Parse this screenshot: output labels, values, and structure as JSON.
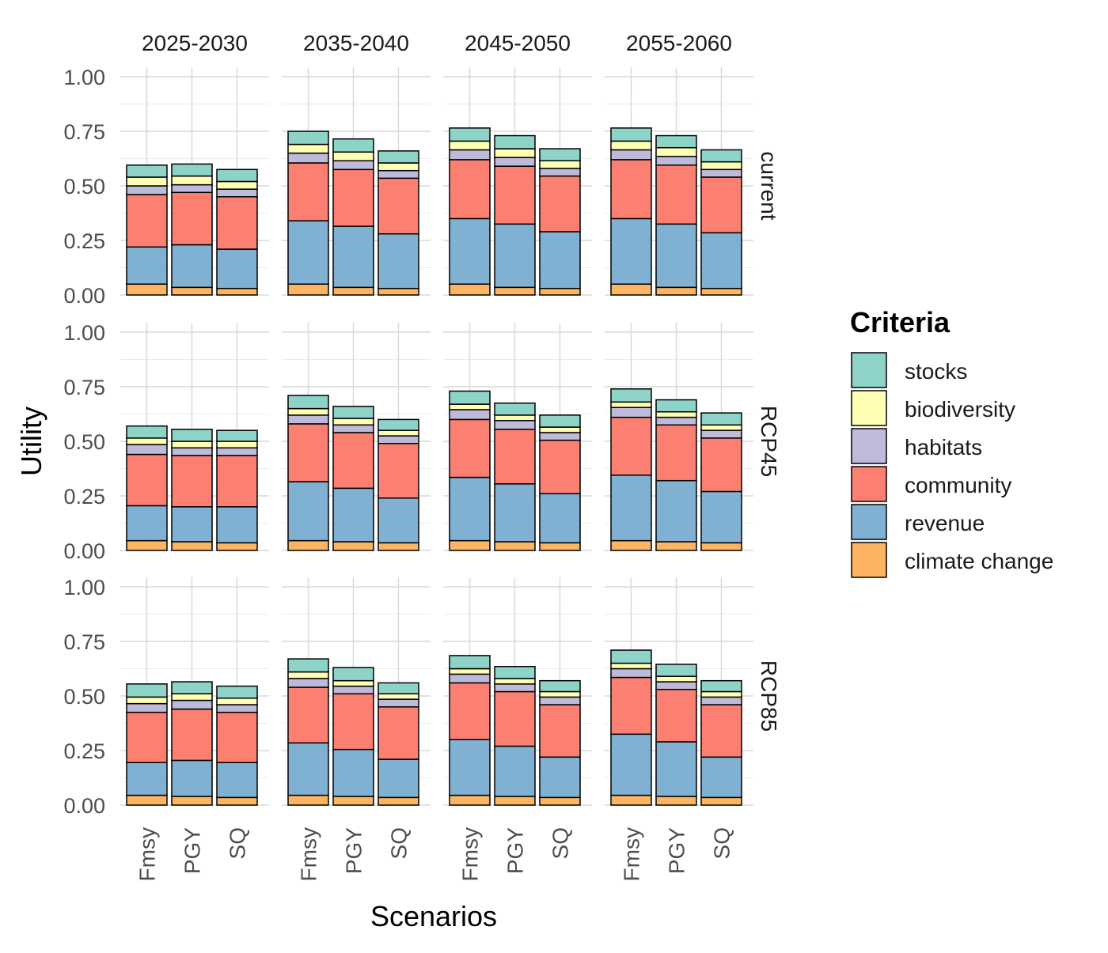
{
  "chart_data": {
    "type": "bar",
    "stacked": true,
    "facet_columns": [
      "2025-2030",
      "2035-2040",
      "2045-2050",
      "2055-2060"
    ],
    "facet_rows": [
      "current",
      "RCP45",
      "RCP85"
    ],
    "categories": [
      "Fmsy",
      "PGY",
      "SQ"
    ],
    "xlabel": "Scenarios",
    "ylabel": "Utility",
    "ylim": [
      0,
      1
    ],
    "yticks": [
      "0.00",
      "0.25",
      "0.50",
      "0.75",
      "1.00"
    ],
    "grid": true,
    "legend": {
      "title": "Criteria",
      "position": "right",
      "entries": [
        "stocks",
        "biodiversity",
        "habitats",
        "community",
        "revenue",
        "climate change"
      ]
    },
    "stack_order": [
      "climate change",
      "revenue",
      "community",
      "habitats",
      "biodiversity",
      "stocks"
    ],
    "colors": {
      "stocks": "#8DD3C7",
      "biodiversity": "#FFFFB3",
      "habitats": "#BEBADA",
      "community": "#FB8072",
      "revenue": "#80B1D3",
      "climate change": "#FDB462"
    },
    "panels": [
      {
        "row": "current",
        "col": "2025-2030",
        "bars": [
          {
            "category": "Fmsy",
            "climate change": 0.05,
            "revenue": 0.17,
            "community": 0.24,
            "habitats": 0.04,
            "biodiversity": 0.04,
            "stocks": 0.055
          },
          {
            "category": "PGY",
            "climate change": 0.035,
            "revenue": 0.195,
            "community": 0.24,
            "habitats": 0.035,
            "biodiversity": 0.04,
            "stocks": 0.055
          },
          {
            "category": "SQ",
            "climate change": 0.03,
            "revenue": 0.18,
            "community": 0.24,
            "habitats": 0.035,
            "biodiversity": 0.035,
            "stocks": 0.055
          }
        ]
      },
      {
        "row": "current",
        "col": "2035-2040",
        "bars": [
          {
            "category": "Fmsy",
            "climate change": 0.05,
            "revenue": 0.29,
            "community": 0.265,
            "habitats": 0.045,
            "biodiversity": 0.04,
            "stocks": 0.06
          },
          {
            "category": "PGY",
            "climate change": 0.035,
            "revenue": 0.28,
            "community": 0.26,
            "habitats": 0.04,
            "biodiversity": 0.04,
            "stocks": 0.06
          },
          {
            "category": "SQ",
            "climate change": 0.03,
            "revenue": 0.25,
            "community": 0.255,
            "habitats": 0.035,
            "biodiversity": 0.035,
            "stocks": 0.055
          }
        ]
      },
      {
        "row": "current",
        "col": "2045-2050",
        "bars": [
          {
            "category": "Fmsy",
            "climate change": 0.05,
            "revenue": 0.3,
            "community": 0.27,
            "habitats": 0.045,
            "biodiversity": 0.04,
            "stocks": 0.06
          },
          {
            "category": "PGY",
            "climate change": 0.035,
            "revenue": 0.29,
            "community": 0.265,
            "habitats": 0.04,
            "biodiversity": 0.04,
            "stocks": 0.06
          },
          {
            "category": "SQ",
            "climate change": 0.03,
            "revenue": 0.26,
            "community": 0.255,
            "habitats": 0.035,
            "biodiversity": 0.035,
            "stocks": 0.055
          }
        ]
      },
      {
        "row": "current",
        "col": "2055-2060",
        "bars": [
          {
            "category": "Fmsy",
            "climate change": 0.05,
            "revenue": 0.3,
            "community": 0.27,
            "habitats": 0.045,
            "biodiversity": 0.04,
            "stocks": 0.06
          },
          {
            "category": "PGY",
            "climate change": 0.035,
            "revenue": 0.29,
            "community": 0.27,
            "habitats": 0.04,
            "biodiversity": 0.04,
            "stocks": 0.055
          },
          {
            "category": "SQ",
            "climate change": 0.03,
            "revenue": 0.255,
            "community": 0.255,
            "habitats": 0.035,
            "biodiversity": 0.035,
            "stocks": 0.055
          }
        ]
      },
      {
        "row": "RCP45",
        "col": "2025-2030",
        "bars": [
          {
            "category": "Fmsy",
            "climate change": 0.045,
            "revenue": 0.16,
            "community": 0.235,
            "habitats": 0.045,
            "biodiversity": 0.03,
            "stocks": 0.055
          },
          {
            "category": "PGY",
            "climate change": 0.04,
            "revenue": 0.16,
            "community": 0.235,
            "habitats": 0.035,
            "biodiversity": 0.03,
            "stocks": 0.055
          },
          {
            "category": "SQ",
            "climate change": 0.035,
            "revenue": 0.165,
            "community": 0.235,
            "habitats": 0.035,
            "biodiversity": 0.03,
            "stocks": 0.05
          }
        ]
      },
      {
        "row": "RCP45",
        "col": "2035-2040",
        "bars": [
          {
            "category": "Fmsy",
            "climate change": 0.045,
            "revenue": 0.27,
            "community": 0.265,
            "habitats": 0.04,
            "biodiversity": 0.03,
            "stocks": 0.06
          },
          {
            "category": "PGY",
            "climate change": 0.04,
            "revenue": 0.245,
            "community": 0.255,
            "habitats": 0.035,
            "biodiversity": 0.03,
            "stocks": 0.055
          },
          {
            "category": "SQ",
            "climate change": 0.035,
            "revenue": 0.205,
            "community": 0.25,
            "habitats": 0.035,
            "biodiversity": 0.025,
            "stocks": 0.05
          }
        ]
      },
      {
        "row": "RCP45",
        "col": "2045-2050",
        "bars": [
          {
            "category": "Fmsy",
            "climate change": 0.045,
            "revenue": 0.29,
            "community": 0.265,
            "habitats": 0.045,
            "biodiversity": 0.025,
            "stocks": 0.06
          },
          {
            "category": "PGY",
            "climate change": 0.04,
            "revenue": 0.265,
            "community": 0.25,
            "habitats": 0.04,
            "biodiversity": 0.025,
            "stocks": 0.055
          },
          {
            "category": "SQ",
            "climate change": 0.035,
            "revenue": 0.225,
            "community": 0.245,
            "habitats": 0.035,
            "biodiversity": 0.025,
            "stocks": 0.055
          }
        ]
      },
      {
        "row": "RCP45",
        "col": "2055-2060",
        "bars": [
          {
            "category": "Fmsy",
            "climate change": 0.045,
            "revenue": 0.3,
            "community": 0.265,
            "habitats": 0.045,
            "biodiversity": 0.025,
            "stocks": 0.06
          },
          {
            "category": "PGY",
            "climate change": 0.04,
            "revenue": 0.28,
            "community": 0.255,
            "habitats": 0.035,
            "biodiversity": 0.025,
            "stocks": 0.055
          },
          {
            "category": "SQ",
            "climate change": 0.035,
            "revenue": 0.235,
            "community": 0.245,
            "habitats": 0.035,
            "biodiversity": 0.025,
            "stocks": 0.055
          }
        ]
      },
      {
        "row": "RCP85",
        "col": "2025-2030",
        "bars": [
          {
            "category": "Fmsy",
            "climate change": 0.045,
            "revenue": 0.15,
            "community": 0.23,
            "habitats": 0.04,
            "biodiversity": 0.03,
            "stocks": 0.06
          },
          {
            "category": "PGY",
            "climate change": 0.04,
            "revenue": 0.165,
            "community": 0.235,
            "habitats": 0.04,
            "biodiversity": 0.03,
            "stocks": 0.055
          },
          {
            "category": "SQ",
            "climate change": 0.035,
            "revenue": 0.16,
            "community": 0.23,
            "habitats": 0.035,
            "biodiversity": 0.03,
            "stocks": 0.055
          }
        ]
      },
      {
        "row": "RCP85",
        "col": "2035-2040",
        "bars": [
          {
            "category": "Fmsy",
            "climate change": 0.045,
            "revenue": 0.24,
            "community": 0.255,
            "habitats": 0.04,
            "biodiversity": 0.03,
            "stocks": 0.06
          },
          {
            "category": "PGY",
            "climate change": 0.04,
            "revenue": 0.215,
            "community": 0.255,
            "habitats": 0.035,
            "biodiversity": 0.025,
            "stocks": 0.06
          },
          {
            "category": "SQ",
            "climate change": 0.035,
            "revenue": 0.175,
            "community": 0.24,
            "habitats": 0.035,
            "biodiversity": 0.025,
            "stocks": 0.05
          }
        ]
      },
      {
        "row": "RCP85",
        "col": "2045-2050",
        "bars": [
          {
            "category": "Fmsy",
            "climate change": 0.045,
            "revenue": 0.255,
            "community": 0.26,
            "habitats": 0.04,
            "biodiversity": 0.025,
            "stocks": 0.06
          },
          {
            "category": "PGY",
            "climate change": 0.04,
            "revenue": 0.23,
            "community": 0.25,
            "habitats": 0.035,
            "biodiversity": 0.025,
            "stocks": 0.055
          },
          {
            "category": "SQ",
            "climate change": 0.035,
            "revenue": 0.185,
            "community": 0.24,
            "habitats": 0.035,
            "biodiversity": 0.025,
            "stocks": 0.05
          }
        ]
      },
      {
        "row": "RCP85",
        "col": "2055-2060",
        "bars": [
          {
            "category": "Fmsy",
            "climate change": 0.045,
            "revenue": 0.28,
            "community": 0.26,
            "habitats": 0.04,
            "biodiversity": 0.025,
            "stocks": 0.06
          },
          {
            "category": "PGY",
            "climate change": 0.04,
            "revenue": 0.25,
            "community": 0.24,
            "habitats": 0.035,
            "biodiversity": 0.025,
            "stocks": 0.055
          },
          {
            "category": "SQ",
            "climate change": 0.035,
            "revenue": 0.185,
            "community": 0.24,
            "habitats": 0.035,
            "biodiversity": 0.025,
            "stocks": 0.05
          }
        ]
      }
    ]
  }
}
